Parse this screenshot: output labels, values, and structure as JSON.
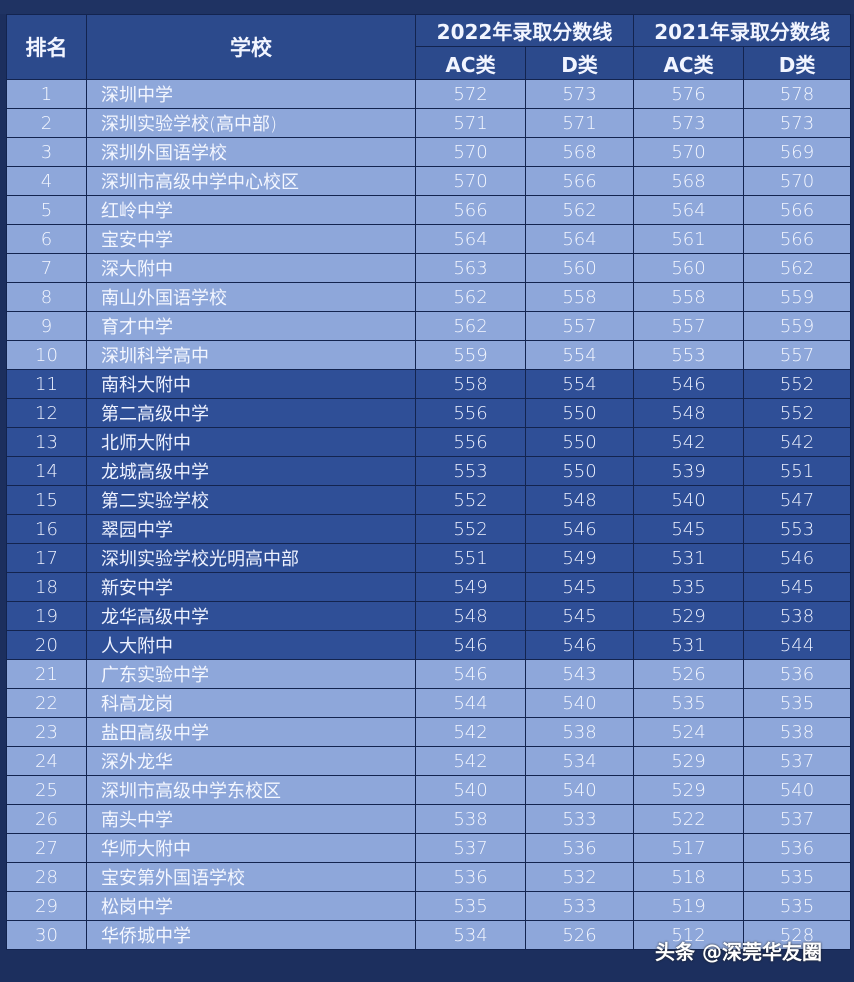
{
  "header": {
    "rank": "排名",
    "school": "学校",
    "year2022": "2022年录取分数线",
    "year2021": "2021年录取分数线",
    "ac": "AC类",
    "d": "D类"
  },
  "colors": {
    "header": "#2c4a8c",
    "light_row": "#8ea7da",
    "dark_row": "#2f4f97",
    "border": "#13244f"
  },
  "rows": [
    {
      "rank": "1",
      "school": "深圳中学",
      "ac2022": "572",
      "d2022": "573",
      "ac2021": "576",
      "d2021": "578",
      "shade": "light"
    },
    {
      "rank": "2",
      "school": "深圳实验学校(高中部)",
      "ac2022": "571",
      "d2022": "571",
      "ac2021": "573",
      "d2021": "573",
      "shade": "light"
    },
    {
      "rank": "3",
      "school": "深圳外国语学校",
      "ac2022": "570",
      "d2022": "568",
      "ac2021": "570",
      "d2021": "569",
      "shade": "light"
    },
    {
      "rank": "4",
      "school": "深圳市高级中学中心校区",
      "ac2022": "570",
      "d2022": "566",
      "ac2021": "568",
      "d2021": "570",
      "shade": "light"
    },
    {
      "rank": "5",
      "school": "红岭中学",
      "ac2022": "566",
      "d2022": "562",
      "ac2021": "564",
      "d2021": "566",
      "shade": "light"
    },
    {
      "rank": "6",
      "school": "宝安中学",
      "ac2022": "564",
      "d2022": "564",
      "ac2021": "561",
      "d2021": "566",
      "shade": "light"
    },
    {
      "rank": "7",
      "school": "深大附中",
      "ac2022": "563",
      "d2022": "560",
      "ac2021": "560",
      "d2021": "562",
      "shade": "light"
    },
    {
      "rank": "8",
      "school": "南山外国语学校",
      "ac2022": "562",
      "d2022": "558",
      "ac2021": "558",
      "d2021": "559",
      "shade": "light"
    },
    {
      "rank": "9",
      "school": "育才中学",
      "ac2022": "562",
      "d2022": "557",
      "ac2021": "557",
      "d2021": "559",
      "shade": "light"
    },
    {
      "rank": "10",
      "school": "深圳科学高中",
      "ac2022": "559",
      "d2022": "554",
      "ac2021": "553",
      "d2021": "557",
      "shade": "light"
    },
    {
      "rank": "11",
      "school": "南科大附中",
      "ac2022": "558",
      "d2022": "554",
      "ac2021": "546",
      "d2021": "552",
      "shade": "dark"
    },
    {
      "rank": "12",
      "school": "第二高级中学",
      "ac2022": "556",
      "d2022": "550",
      "ac2021": "548",
      "d2021": "552",
      "shade": "dark"
    },
    {
      "rank": "13",
      "school": "北师大附中",
      "ac2022": "556",
      "d2022": "550",
      "ac2021": "542",
      "d2021": "542",
      "shade": "dark"
    },
    {
      "rank": "14",
      "school": "龙城高级中学",
      "ac2022": "553",
      "d2022": "550",
      "ac2021": "539",
      "d2021": "551",
      "shade": "dark"
    },
    {
      "rank": "15",
      "school": "第二实验学校",
      "ac2022": "552",
      "d2022": "548",
      "ac2021": "540",
      "d2021": "547",
      "shade": "dark"
    },
    {
      "rank": "16",
      "school": "翠园中学",
      "ac2022": "552",
      "d2022": "546",
      "ac2021": "545",
      "d2021": "553",
      "shade": "dark"
    },
    {
      "rank": "17",
      "school": "深圳实验学校光明高中部",
      "ac2022": "551",
      "d2022": "549",
      "ac2021": "531",
      "d2021": "546",
      "shade": "dark"
    },
    {
      "rank": "18",
      "school": "新安中学",
      "ac2022": "549",
      "d2022": "545",
      "ac2021": "535",
      "d2021": "545",
      "shade": "dark"
    },
    {
      "rank": "19",
      "school": "龙华高级中学",
      "ac2022": "548",
      "d2022": "545",
      "ac2021": "529",
      "d2021": "538",
      "shade": "dark"
    },
    {
      "rank": "20",
      "school": "人大附中",
      "ac2022": "546",
      "d2022": "546",
      "ac2021": "531",
      "d2021": "544",
      "shade": "dark"
    },
    {
      "rank": "21",
      "school": "广东实验中学",
      "ac2022": "546",
      "d2022": "543",
      "ac2021": "526",
      "d2021": "536",
      "shade": "light"
    },
    {
      "rank": "22",
      "school": "科高龙岗",
      "ac2022": "544",
      "d2022": "540",
      "ac2021": "535",
      "d2021": "535",
      "shade": "light"
    },
    {
      "rank": "23",
      "school": "盐田高级中学",
      "ac2022": "542",
      "d2022": "538",
      "ac2021": "524",
      "d2021": "538",
      "shade": "light"
    },
    {
      "rank": "24",
      "school": "深外龙华",
      "ac2022": "542",
      "d2022": "534",
      "ac2021": "529",
      "d2021": "537",
      "shade": "light"
    },
    {
      "rank": "25",
      "school": "深圳市高级中学东校区",
      "ac2022": "540",
      "d2022": "540",
      "ac2021": "529",
      "d2021": "540",
      "shade": "light"
    },
    {
      "rank": "26",
      "school": "南头中学",
      "ac2022": "538",
      "d2022": "533",
      "ac2021": "522",
      "d2021": "537",
      "shade": "light"
    },
    {
      "rank": "27",
      "school": "华师大附中",
      "ac2022": "537",
      "d2022": "536",
      "ac2021": "517",
      "d2021": "536",
      "shade": "light"
    },
    {
      "rank": "28",
      "school": "宝安第外国语学校",
      "ac2022": "536",
      "d2022": "532",
      "ac2021": "518",
      "d2021": "535",
      "shade": "light"
    },
    {
      "rank": "29",
      "school": "松岗中学",
      "ac2022": "535",
      "d2022": "533",
      "ac2021": "519",
      "d2021": "535",
      "shade": "light"
    },
    {
      "rank": "30",
      "school": "华侨城中学",
      "ac2022": "534",
      "d2022": "526",
      "ac2021": "512",
      "d2021": "528",
      "shade": "light"
    }
  ],
  "watermark": "头条 @深莞华友圈"
}
